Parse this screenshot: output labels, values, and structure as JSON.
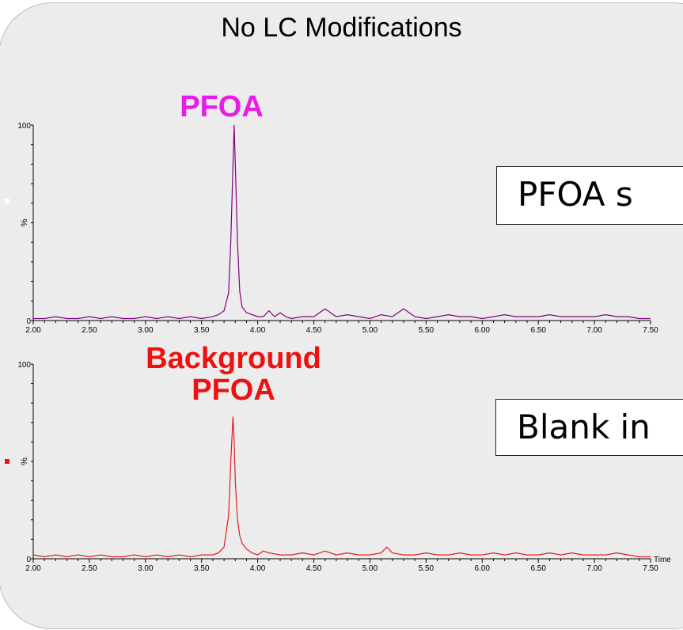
{
  "title": "No LC Modifications",
  "colors": {
    "trace1": "#800080",
    "trace2": "#e41a1c",
    "label1": "#e81be8",
    "label2": "#ee1111"
  },
  "chart_data": [
    {
      "type": "line",
      "label": "PFOA",
      "callout": "PFOA s",
      "ytick_top": "100",
      "ytick_bottom": "0",
      "ylabel": "%",
      "xlabel": "",
      "xlim": [
        2.0,
        7.5
      ],
      "ylim": [
        0,
        100
      ],
      "xticks": [
        "2.00",
        "2.50",
        "3.00",
        "3.50",
        "4.00",
        "4.50",
        "5.00",
        "5.50",
        "6.00",
        "6.50",
        "7.00",
        "7.50"
      ],
      "series": [
        {
          "x": [
            2.0,
            2.1,
            2.2,
            2.3,
            2.4,
            2.5,
            2.6,
            2.7,
            2.8,
            2.9,
            3.0,
            3.1,
            3.2,
            3.3,
            3.4,
            3.5,
            3.6,
            3.65,
            3.7,
            3.74,
            3.76,
            3.78,
            3.79,
            3.8,
            3.82,
            3.84,
            3.86,
            3.9,
            3.95,
            4.0,
            4.05,
            4.1,
            4.15,
            4.2,
            4.25,
            4.3,
            4.4,
            4.5,
            4.6,
            4.7,
            4.8,
            4.9,
            5.0,
            5.1,
            5.2,
            5.3,
            5.4,
            5.5,
            5.6,
            5.7,
            5.8,
            5.9,
            6.0,
            6.1,
            6.2,
            6.3,
            6.4,
            6.5,
            6.6,
            6.7,
            6.8,
            6.9,
            7.0,
            7.1,
            7.2,
            7.3,
            7.4,
            7.5
          ],
          "y": [
            1,
            1,
            2,
            1,
            1,
            2,
            1,
            2,
            1,
            1,
            2,
            1,
            2,
            1,
            2,
            1,
            2,
            3,
            5,
            14,
            40,
            80,
            100,
            80,
            40,
            15,
            7,
            4,
            3,
            2,
            2,
            5,
            2,
            4,
            2,
            1,
            2,
            2,
            6,
            2,
            3,
            2,
            1,
            3,
            2,
            6,
            2,
            1,
            2,
            3,
            2,
            2,
            1,
            2,
            3,
            2,
            2,
            2,
            3,
            2,
            2,
            2,
            2,
            3,
            2,
            2,
            1,
            1
          ]
        }
      ]
    },
    {
      "type": "line",
      "label": "Background\nPFOA",
      "callout": "Blank in",
      "ytick_top": "100",
      "ytick_bottom": "0",
      "ylabel": "%",
      "xlabel": "Time",
      "xlim": [
        2.0,
        7.5
      ],
      "ylim": [
        0,
        100
      ],
      "xticks": [
        "2.00",
        "2.50",
        "3.00",
        "3.50",
        "4.00",
        "4.50",
        "5.00",
        "5.50",
        "6.00",
        "6.50",
        "7.00",
        "7.50"
      ],
      "series": [
        {
          "x": [
            2.0,
            2.1,
            2.2,
            2.3,
            2.4,
            2.5,
            2.6,
            2.7,
            2.8,
            2.9,
            3.0,
            3.1,
            3.2,
            3.3,
            3.4,
            3.5,
            3.6,
            3.65,
            3.7,
            3.74,
            3.76,
            3.78,
            3.79,
            3.8,
            3.82,
            3.84,
            3.86,
            3.9,
            3.95,
            4.0,
            4.05,
            4.1,
            4.2,
            4.3,
            4.4,
            4.5,
            4.6,
            4.7,
            4.8,
            4.9,
            5.0,
            5.1,
            5.15,
            5.2,
            5.3,
            5.4,
            5.5,
            5.6,
            5.7,
            5.8,
            5.9,
            6.0,
            6.1,
            6.2,
            6.3,
            6.4,
            6.5,
            6.6,
            6.7,
            6.8,
            6.9,
            7.0,
            7.1,
            7.2,
            7.3,
            7.4,
            7.5
          ],
          "y": [
            2,
            1,
            2,
            1,
            2,
            1,
            2,
            1,
            1,
            2,
            1,
            2,
            1,
            2,
            1,
            2,
            2,
            3,
            6,
            22,
            50,
            73,
            60,
            40,
            20,
            12,
            8,
            5,
            3,
            2,
            4,
            3,
            2,
            2,
            3,
            2,
            4,
            2,
            3,
            2,
            2,
            3,
            6,
            3,
            2,
            2,
            3,
            2,
            2,
            3,
            2,
            2,
            3,
            2,
            3,
            2,
            2,
            3,
            2,
            3,
            2,
            2,
            2,
            3,
            2,
            1,
            1
          ]
        }
      ]
    }
  ]
}
